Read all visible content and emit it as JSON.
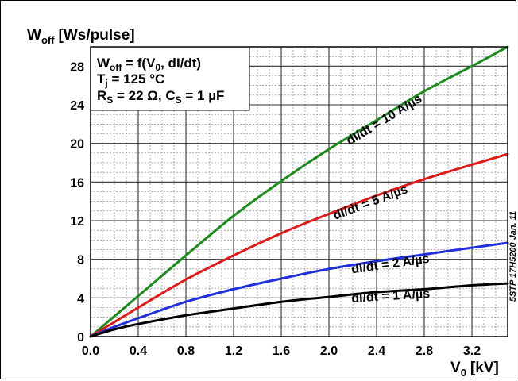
{
  "chart_data": {
    "type": "line",
    "title": "",
    "y_label": "W",
    "y_label_sub": "off",
    "y_label_unit": "[Ws/pulse]",
    "x_label": "V",
    "x_label_sub": "0",
    "x_label_unit": "[kV]",
    "xlim": [
      0,
      3.5
    ],
    "ylim": [
      0,
      30
    ],
    "x_ticks": [
      "0.0",
      "0.4",
      "0.8",
      "1.2",
      "1.6",
      "2.0",
      "2.4",
      "2.8",
      "3.2"
    ],
    "x_tick_values": [
      0,
      0.4,
      0.8,
      1.2,
      1.6,
      2.0,
      2.4,
      2.8,
      3.2
    ],
    "y_ticks": [
      "0",
      "4",
      "8",
      "12",
      "16",
      "20",
      "24",
      "28"
    ],
    "y_tick_values": [
      0,
      4,
      8,
      12,
      16,
      20,
      24,
      28
    ],
    "grid": true,
    "minor_grid": true,
    "series": [
      {
        "name": "dI/dt = 10 A/µs",
        "color": "#1a8c1a",
        "x": [
          0,
          0.2,
          0.4,
          0.8,
          1.2,
          1.6,
          2.0,
          2.4,
          2.8,
          3.2,
          3.5
        ],
        "y": [
          0,
          2.1,
          4.2,
          8.4,
          12.5,
          16.1,
          19.4,
          22.4,
          25.4,
          28.0,
          30.0
        ]
      },
      {
        "name": "dI/dt = 5 A/µs",
        "color": "#e01818",
        "x": [
          0,
          0.2,
          0.4,
          0.8,
          1.2,
          1.6,
          2.0,
          2.4,
          2.8,
          3.2,
          3.5
        ],
        "y": [
          0,
          1.5,
          3.0,
          5.9,
          8.4,
          10.7,
          12.7,
          14.6,
          16.3,
          17.8,
          18.9
        ]
      },
      {
        "name": "dI/dt = 2 A/µs",
        "color": "#1f2fdc",
        "x": [
          0,
          0.2,
          0.4,
          0.8,
          1.2,
          1.6,
          2.0,
          2.4,
          2.8,
          3.2,
          3.5
        ],
        "y": [
          0,
          1.0,
          1.9,
          3.6,
          4.9,
          6.0,
          7.0,
          7.8,
          8.5,
          9.2,
          9.7
        ]
      },
      {
        "name": "dI/dt = 1 A/µs",
        "color": "#000000",
        "x": [
          0,
          0.2,
          0.4,
          0.8,
          1.2,
          1.6,
          2.0,
          2.4,
          2.8,
          3.2,
          3.5
        ],
        "y": [
          0,
          0.75,
          1.3,
          2.2,
          2.9,
          3.6,
          4.1,
          4.6,
          4.9,
          5.3,
          5.5
        ]
      }
    ],
    "curve_labels": [
      {
        "text": "dI/dt = 10 A/µs",
        "series": 0
      },
      {
        "text": "dI/dt = 5 A/µs",
        "series": 1
      },
      {
        "text": "dI/dt = 2 A/µs",
        "series": 2
      },
      {
        "text": "dI/dt = 1 A/µs",
        "series": 3
      }
    ],
    "legend_box": {
      "line1_main": "W",
      "line1_sub": "off",
      "line1_rest": " = f(V",
      "line1_sub2": "0",
      "line1_tail": ", dI/dt)",
      "line2_main": "T",
      "line2_sub": "j",
      "line2_rest": " = 125 °C",
      "line3_main": "R",
      "line3_sub": "S",
      "line3_rest": " = 22 Ω, C",
      "line3_sub2": "S",
      "line3_tail": " = 1 µF"
    },
    "side_note": "5STP 17H5200 Jan. 11"
  }
}
